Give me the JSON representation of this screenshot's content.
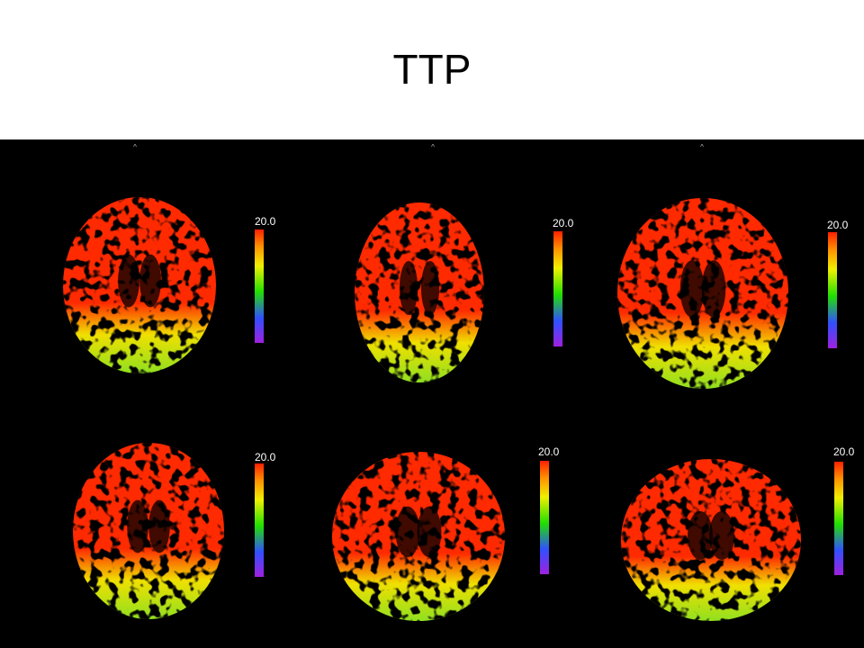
{
  "title": "TTP",
  "orientation_marks": [
    "^",
    "^",
    "^"
  ],
  "panels": [
    {
      "scale_max": "20.0"
    },
    {
      "scale_max": "20.0"
    },
    {
      "scale_max": "20.0"
    },
    {
      "scale_max": "20.0"
    },
    {
      "scale_max": "20.0"
    },
    {
      "scale_max": "20.0"
    }
  ]
}
